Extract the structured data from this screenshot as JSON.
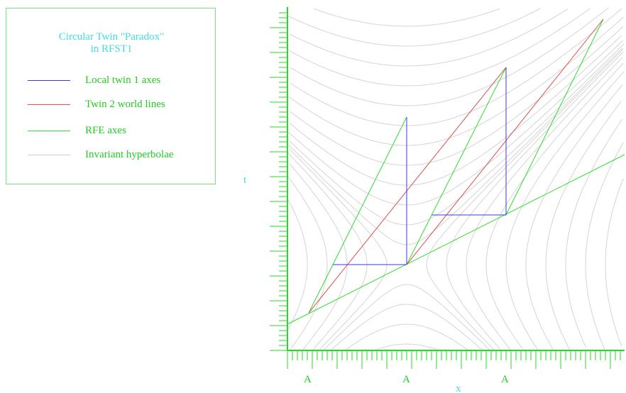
{
  "legend": {
    "title_line1": "Circular Twin \"Paradox\"",
    "title_line2": "in RFST1",
    "items": [
      {
        "label": "Local twin 1 axes",
        "color": "#3b3bd6"
      },
      {
        "label": "Twin 2 world lines",
        "color": "#e05050"
      },
      {
        "label": "RFE axes",
        "color": "#33dd33"
      },
      {
        "label": "Invariant hyperbolae",
        "color": "#d0d0d0"
      }
    ]
  },
  "axes": {
    "y_label": "t",
    "x_label": "x",
    "x_tick_labels": [
      "A",
      "A",
      "A"
    ],
    "axis_color": "#22dd22",
    "label_color": "#3fdde0"
  }
}
